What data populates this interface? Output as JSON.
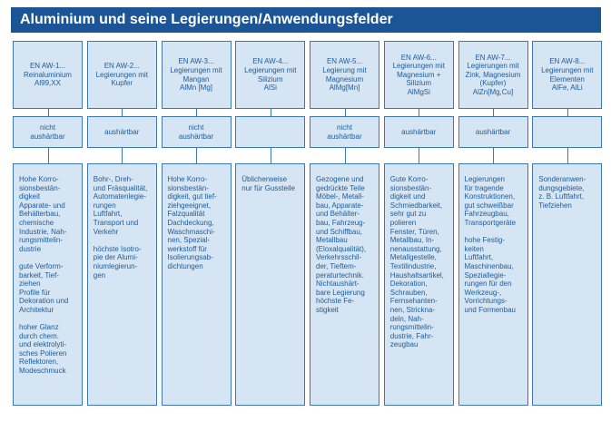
{
  "title": "Aluminium und seine Legierungen/Anwendungsfelder",
  "columns": [
    {
      "header": [
        "EN AW-1...",
        "Reinaluminium",
        "Al99,XX"
      ],
      "hardening": [
        "nicht",
        "aushärtbar"
      ],
      "uses": [
        [
          "Hohe Korro-",
          "sionsbestän-",
          "digkeit",
          "Apparate- und",
          "Behälterbau,",
          "chemische",
          "Industrie, Nah-",
          "rungsmittelin-",
          "dustrie"
        ],
        [
          "gute Verform-",
          "barkeit, Tief-",
          "ziehen",
          "Profile für",
          "Dekoration und",
          "Architektur"
        ],
        [
          "hoher Glanz",
          "durch chem.",
          "und elektrolyti-",
          "sches Polieren",
          "Reflektoren,",
          "Modeschmuck"
        ]
      ]
    },
    {
      "header": [
        "EN AW-2...",
        "Legierungen mit",
        "Kupfer"
      ],
      "hardening": [
        "aushärtbar"
      ],
      "uses": [
        [
          "Bohr-, Dreh-",
          "und Fräsqualität,",
          "Automatenlegie-",
          "rungen",
          "Luftfahrt,",
          "Transport und",
          "Verkehr"
        ],
        [
          "höchste Isotro-",
          "pie der Alumi-",
          "niumlegierun-",
          "gen"
        ]
      ]
    },
    {
      "header": [
        "EN AW-3...",
        "Legierungen mit",
        "Mangan",
        "AlMn [Mg]"
      ],
      "hardening": [
        "nicht",
        "aushärtbar"
      ],
      "uses": [
        [
          "Hohe Korro-",
          "sionsbestän-",
          "digkeit, gut tief-",
          "ziehgeeignet,",
          "Falzqualität",
          "Dachdeckung,",
          "Waschmaschi-",
          "nen, Spezial-",
          "werkstoff für",
          "Isolierungsab-",
          "dichtungen"
        ]
      ]
    },
    {
      "header": [
        "EN AW-4...",
        "Legierungen mit",
        "Silizium",
        "AlSi"
      ],
      "hardening": [],
      "uses": [
        [
          "Üblicherweise",
          "nur für Gussteile"
        ]
      ]
    },
    {
      "header": [
        "EN AW-5...",
        "Legierung mit",
        "Magnesium",
        "AlMg[Mn]"
      ],
      "hardening": [
        "nicht",
        "aushärtbar"
      ],
      "uses": [
        [
          "Gezogene und",
          "gedrückte Teile",
          "Möbel-, Metall-",
          "bau, Apparate-",
          "und Behälter-",
          "bau, Fahrzeug-",
          "und Schiffbau,",
          "Metallbau",
          "(Eloxalqualität),",
          "Verkehrsschil-",
          "der, Tieftem-",
          "peraturtechnik.",
          "Nichtaushärt-",
          "bare Legierung",
          "höchste Fe-",
          "stigkeit"
        ]
      ]
    },
    {
      "header": [
        "EN AW-6...",
        "Legierungen mit",
        "Magnesium +",
        "Silizium",
        "AlMgSi"
      ],
      "hardening": [
        "aushärtbar"
      ],
      "uses": [
        [
          "Gute Korro-",
          "sionsbestän-",
          "digkeit und",
          "Schmiedbarkeit,",
          "sehr gut zu",
          "polieren",
          "Fenster, Türen,",
          "Metallbau, In-",
          "nenausstattung,",
          "Metallgestelle,",
          "Textilindustrie,",
          "Haushaltsartikel,",
          "Dekoration,",
          "Schrauben,",
          "Fernsehanten-",
          "nen, Strickna-",
          "deln, Nah-",
          "rungsmittelin-",
          "dustrie, Fahr-",
          "zeugbau"
        ]
      ]
    },
    {
      "header": [
        "EN AW-7...",
        "Legierungen mit",
        "Zink, Magnesium",
        "(Kupfer)",
        "AlZn[Mg,Cu]"
      ],
      "hardening": [
        "aushärtbar"
      ],
      "uses": [
        [
          "Legierungen",
          "für tragende",
          "Konstruktionen,",
          "gut schweißbar",
          "Fahrzeugbau,",
          "Transportgeräte"
        ],
        [
          "hohe Festig-",
          "keiten",
          "Luftfahrt,",
          "Maschinenbau,",
          "Speziallegie-",
          "rungen für den",
          "Werkzeug-,",
          "Vorrichtungs-",
          "und Formenbau"
        ]
      ]
    },
    {
      "header": [
        "EN AW-8...",
        "Legierungen mit",
        "Elementen",
        "AlFe, AlLi"
      ],
      "hardening": [],
      "uses": [
        [
          "Sonderanwen-",
          "dungsgebiete,",
          "z. B. Luftfahrt,",
          "Tiefziehen"
        ]
      ]
    }
  ]
}
